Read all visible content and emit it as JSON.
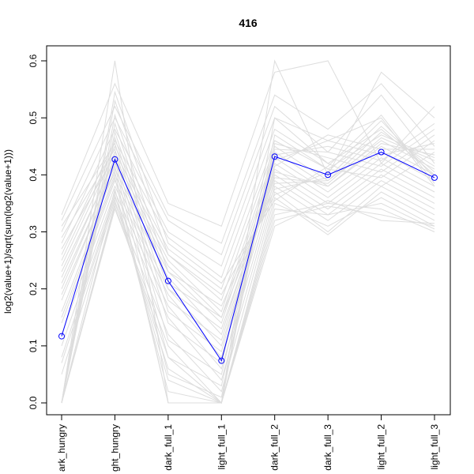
{
  "chart_data": {
    "type": "line",
    "title": "416",
    "xlabel": "",
    "ylabel": "log2(value+1)/sqrt(sum(log2(value+1)))",
    "ylim": [
      0.0,
      0.6
    ],
    "yticks": [
      "0.0",
      "0.1",
      "0.2",
      "0.3",
      "0.4",
      "0.5",
      "0.6"
    ],
    "categories": [
      "dark_hungry",
      "light_hungry",
      "dark_full_1",
      "light_full_1",
      "dark_full_2",
      "dark_full_3",
      "light_full_2",
      "light_full_3"
    ],
    "tick_labels": [
      "ark_hungry",
      "ght_hungry",
      "dark_full_1",
      "light_full_1",
      "dark_full_2",
      "dark_full_3",
      "light_full_2",
      "light_full_3"
    ],
    "highlight_color": "#0000ff",
    "background_color": "#dddddd",
    "series": [
      {
        "role": "highlight",
        "values": [
          0.117,
          0.427,
          0.214,
          0.074,
          0.432,
          0.4,
          0.44,
          0.395
        ]
      },
      {
        "role": "background",
        "values": [
          0.0,
          0.6,
          0.0,
          0.0,
          0.6,
          0.4,
          0.58,
          0.5
        ]
      },
      {
        "role": "background",
        "values": [
          0.33,
          0.56,
          0.35,
          0.31,
          0.58,
          0.6,
          0.42,
          0.52
        ]
      },
      {
        "role": "background",
        "values": [
          0.32,
          0.52,
          0.33,
          0.28,
          0.54,
          0.48,
          0.56,
          0.45
        ]
      },
      {
        "role": "background",
        "values": [
          0.3,
          0.5,
          0.32,
          0.26,
          0.52,
          0.44,
          0.54,
          0.42
        ]
      },
      {
        "role": "background",
        "values": [
          0.28,
          0.48,
          0.3,
          0.24,
          0.5,
          0.46,
          0.5,
          0.38
        ]
      },
      {
        "role": "background",
        "values": [
          0.26,
          0.46,
          0.29,
          0.22,
          0.48,
          0.42,
          0.48,
          0.4
        ]
      },
      {
        "role": "background",
        "values": [
          0.25,
          0.45,
          0.27,
          0.2,
          0.46,
          0.41,
          0.47,
          0.43
        ]
      },
      {
        "role": "background",
        "values": [
          0.24,
          0.44,
          0.26,
          0.18,
          0.45,
          0.39,
          0.46,
          0.41
        ]
      },
      {
        "role": "background",
        "values": [
          0.22,
          0.43,
          0.25,
          0.16,
          0.44,
          0.38,
          0.45,
          0.4
        ]
      },
      {
        "role": "background",
        "values": [
          0.2,
          0.42,
          0.24,
          0.15,
          0.43,
          0.37,
          0.44,
          0.39
        ]
      },
      {
        "role": "background",
        "values": [
          0.18,
          0.41,
          0.23,
          0.14,
          0.42,
          0.36,
          0.43,
          0.38
        ]
      },
      {
        "role": "background",
        "values": [
          0.16,
          0.4,
          0.22,
          0.12,
          0.41,
          0.35,
          0.42,
          0.37
        ]
      },
      {
        "role": "background",
        "values": [
          0.14,
          0.39,
          0.2,
          0.1,
          0.4,
          0.34,
          0.41,
          0.36
        ]
      },
      {
        "role": "background",
        "values": [
          0.12,
          0.38,
          0.19,
          0.08,
          0.39,
          0.33,
          0.4,
          0.35
        ]
      },
      {
        "role": "background",
        "values": [
          0.1,
          0.37,
          0.17,
          0.06,
          0.38,
          0.32,
          0.39,
          0.34
        ]
      },
      {
        "role": "background",
        "values": [
          0.07,
          0.36,
          0.15,
          0.04,
          0.37,
          0.3,
          0.38,
          0.33
        ]
      },
      {
        "role": "background",
        "values": [
          0.0,
          0.35,
          0.12,
          0.02,
          0.36,
          0.295,
          0.37,
          0.32
        ]
      },
      {
        "role": "background",
        "values": [
          0.0,
          0.34,
          0.1,
          0.0,
          0.35,
          0.31,
          0.36,
          0.31
        ]
      },
      {
        "role": "background",
        "values": [
          0.0,
          0.345,
          0.08,
          0.0,
          0.34,
          0.33,
          0.35,
          0.305
        ]
      },
      {
        "role": "background",
        "values": [
          0.05,
          0.355,
          0.06,
          0.0,
          0.33,
          0.35,
          0.34,
          0.3
        ]
      },
      {
        "role": "background",
        "values": [
          0.08,
          0.365,
          0.04,
          0.0,
          0.32,
          0.345,
          0.33,
          0.31
        ]
      },
      {
        "role": "background",
        "values": [
          0.0,
          0.375,
          0.02,
          0.0,
          0.31,
          0.355,
          0.32,
          0.315
        ]
      },
      {
        "role": "background",
        "values": [
          0.15,
          0.395,
          0.0,
          0.0,
          0.5,
          0.42,
          0.38,
          0.44
        ]
      },
      {
        "role": "background",
        "values": [
          0.19,
          0.405,
          0.0,
          0.0,
          0.47,
          0.41,
          0.395,
          0.46
        ]
      },
      {
        "role": "background",
        "values": [
          0.21,
          0.415,
          0.05,
          0.01,
          0.455,
          0.43,
          0.405,
          0.47
        ]
      },
      {
        "role": "background",
        "values": [
          0.23,
          0.425,
          0.08,
          0.03,
          0.445,
          0.44,
          0.415,
          0.48
        ]
      },
      {
        "role": "background",
        "values": [
          0.27,
          0.435,
          0.11,
          0.05,
          0.435,
          0.45,
          0.425,
          0.49
        ]
      },
      {
        "role": "background",
        "values": [
          0.29,
          0.445,
          0.14,
          0.07,
          0.425,
          0.46,
          0.435,
          0.455
        ]
      },
      {
        "role": "background",
        "values": [
          0.31,
          0.455,
          0.16,
          0.09,
          0.415,
          0.47,
          0.445,
          0.445
        ]
      },
      {
        "role": "background",
        "values": [
          0.0,
          0.465,
          0.18,
          0.11,
          0.405,
          0.38,
          0.455,
          0.435
        ]
      },
      {
        "role": "background",
        "values": [
          0.0,
          0.475,
          0.2,
          0.13,
          0.395,
          0.385,
          0.465,
          0.425
        ]
      },
      {
        "role": "background",
        "values": [
          0.0,
          0.49,
          0.21,
          0.15,
          0.385,
          0.39,
          0.475,
          0.415
        ]
      },
      {
        "role": "background",
        "values": [
          0.0,
          0.505,
          0.23,
          0.17,
          0.375,
          0.395,
          0.485,
          0.405
        ]
      },
      {
        "role": "background",
        "values": [
          0.0,
          0.53,
          0.26,
          0.19,
          0.365,
          0.405,
          0.495,
          0.395
        ]
      },
      {
        "role": "background",
        "values": [
          0.0,
          0.545,
          0.28,
          0.21,
          0.355,
          0.415,
          0.505,
          0.385
        ]
      }
    ]
  }
}
